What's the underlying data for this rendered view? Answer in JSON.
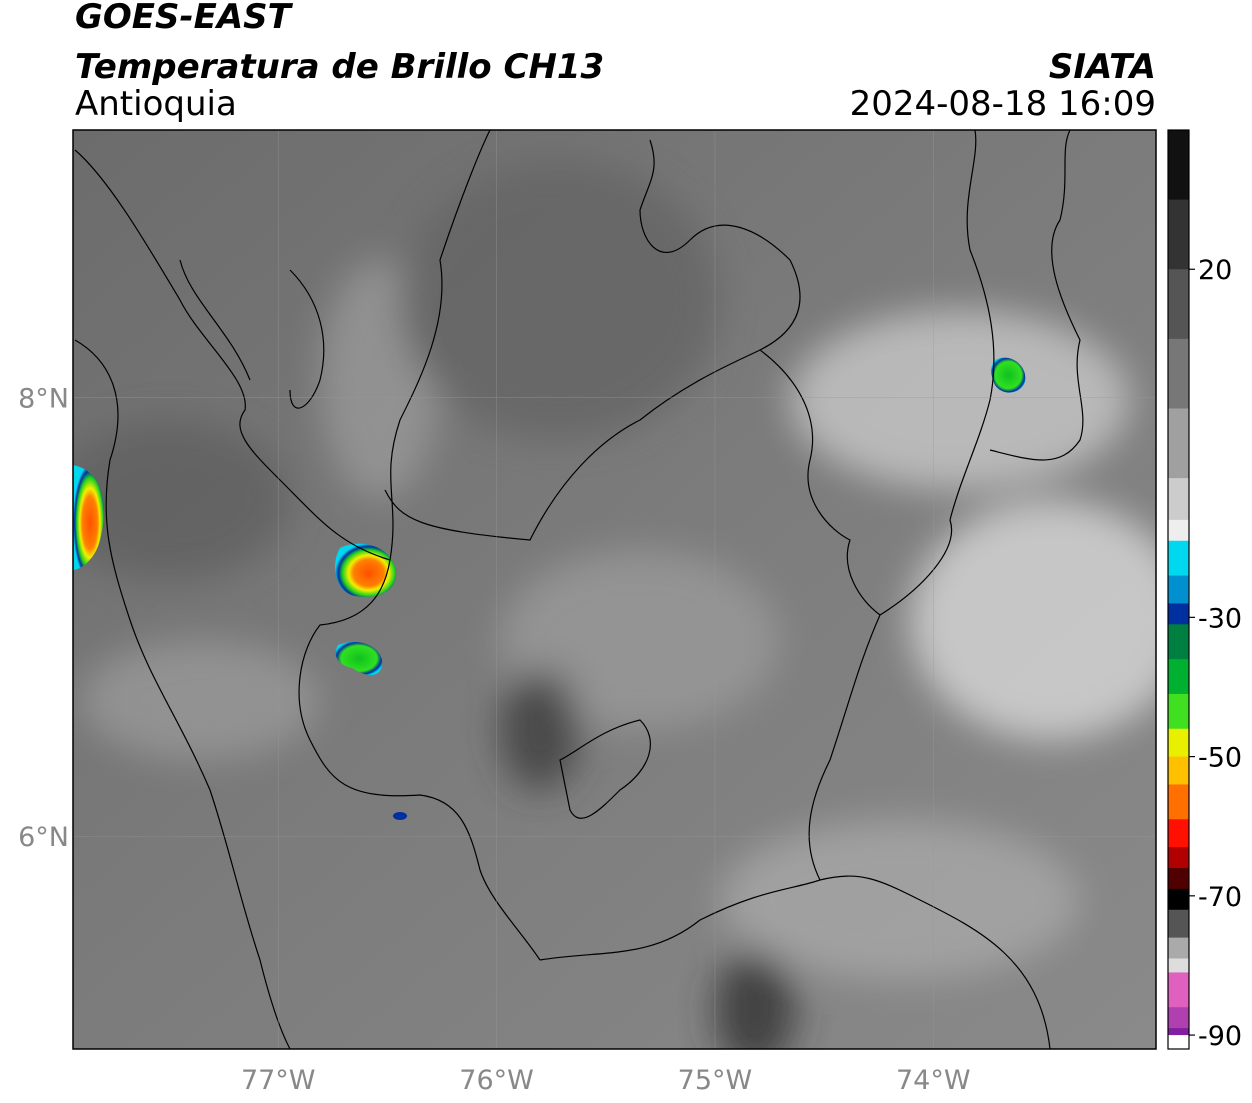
{
  "header": {
    "title": "GOES-EAST",
    "subtitle": "Temperatura de Brillo CH13",
    "region": "Antioquia",
    "source": "SIATA",
    "datetime": "2024-08-18 16:09"
  },
  "map": {
    "xlim": [
      -77.94,
      -72.98
    ],
    "ylim": [
      5.03,
      9.22
    ],
    "xticks": [
      {
        "value": -77,
        "label": "77°W"
      },
      {
        "value": -76,
        "label": "76°W"
      },
      {
        "value": -75,
        "label": "75°W"
      },
      {
        "value": -74,
        "label": "74°W"
      }
    ],
    "yticks": [
      {
        "value": 8,
        "label": "8°N"
      },
      {
        "value": 6,
        "label": "6°N"
      }
    ]
  },
  "colorbar": {
    "lim": [
      -92,
      40
    ],
    "ticks": [
      20,
      -30,
      -50,
      -70,
      -90
    ],
    "stops": [
      {
        "value": 40,
        "color": "#111111"
      },
      {
        "value": 30,
        "color": "#333333"
      },
      {
        "value": 20,
        "color": "#555555"
      },
      {
        "value": 10,
        "color": "#777777"
      },
      {
        "value": 0,
        "color": "#a0a0a0"
      },
      {
        "value": -10,
        "color": "#cccccc"
      },
      {
        "value": -16,
        "color": "#eeeeee"
      },
      {
        "value": -19,
        "color": "#00d8f0"
      },
      {
        "value": -24,
        "color": "#0090d0"
      },
      {
        "value": -28,
        "color": "#0030a0"
      },
      {
        "value": -31,
        "color": "#008040"
      },
      {
        "value": -36,
        "color": "#00b030"
      },
      {
        "value": -41,
        "color": "#40e020"
      },
      {
        "value": -46,
        "color": "#e8f000"
      },
      {
        "value": -50,
        "color": "#ffc000"
      },
      {
        "value": -54,
        "color": "#ff7000"
      },
      {
        "value": -59,
        "color": "#ff1000"
      },
      {
        "value": -63,
        "color": "#b00000"
      },
      {
        "value": -66,
        "color": "#500000"
      },
      {
        "value": -69,
        "color": "#000000"
      },
      {
        "value": -72,
        "color": "#555555"
      },
      {
        "value": -76,
        "color": "#aaaaaa"
      },
      {
        "value": -79,
        "color": "#dddddd"
      },
      {
        "value": -81,
        "color": "#e060c0"
      },
      {
        "value": -86,
        "color": "#b040b0"
      },
      {
        "value": -89,
        "color": "#8020a0"
      },
      {
        "value": -90,
        "color": "#ffffff"
      }
    ]
  }
}
